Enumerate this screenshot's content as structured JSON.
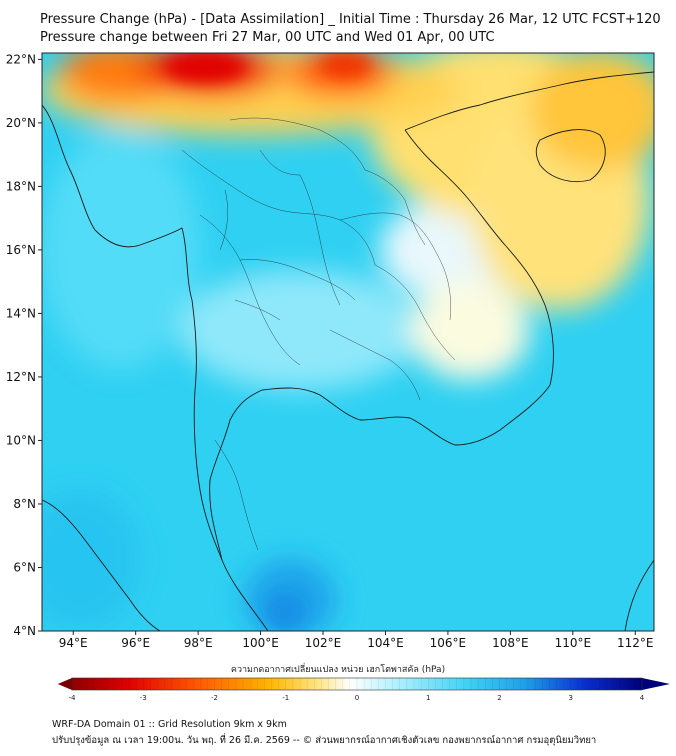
{
  "header": {
    "title_line1": "Pressure Change (hPa) - [Data Assimilation] _ Initial Time : Thursday 26 Mar, 12 UTC FCST+120",
    "title_line2": "Pressure change between Fri 27 Mar, 00 UTC and Wed 01 Apr, 00 UTC"
  },
  "map": {
    "lat_labels": [
      "22°N",
      "20°N",
      "18°N",
      "16°N",
      "14°N",
      "12°N",
      "10°N",
      "8°N",
      "6°N",
      "4°N"
    ],
    "lon_labels": [
      "94°E",
      "96°E",
      "98°E",
      "100°E",
      "102°E",
      "104°E",
      "106°E",
      "108°E",
      "110°E",
      "112°E"
    ],
    "lat_values": [
      22,
      20,
      18,
      16,
      14,
      12,
      10,
      8,
      6,
      4
    ],
    "lon_values": [
      94,
      96,
      98,
      100,
      102,
      104,
      106,
      108,
      110,
      112
    ],
    "extent": {
      "lon_min": 93.0,
      "lon_max": 112.6,
      "lat_min": 4.0,
      "lat_max": 22.2
    }
  },
  "colorbar": {
    "label": "ความกดอากาศเปลี่ยนแปลง หน่วย เฮกโตพาสคัล (hPa)",
    "ticks": [
      "-4",
      "-3",
      "-2",
      "-1",
      "0",
      "1",
      "2",
      "3",
      "4"
    ],
    "tick_values": [
      -4,
      -3,
      -2,
      -1,
      0,
      1,
      2,
      3,
      4
    ],
    "colors": [
      "#7a0000",
      "#e00000",
      "#ff5a00",
      "#ffb400",
      "#ffe27a",
      "#ffffff",
      "#b0f0ff",
      "#3fd2f5",
      "#1488e0",
      "#0014c8",
      "#00007a"
    ]
  },
  "footer": {
    "line1": "WRF-DA Domain 01 :: Grid Resolution 9km x 9km",
    "line2": "ปรับปรุงข้อมูล ณ เวลา 19:00น. วัน พฤ. ที่ 26 มี.ค. 2569 -- © ส่วนพยากรณ์อากาศเชิงตัวเลข กองพยากรณ์อากาศ กรมอุตุนิยมวิทยา"
  }
}
